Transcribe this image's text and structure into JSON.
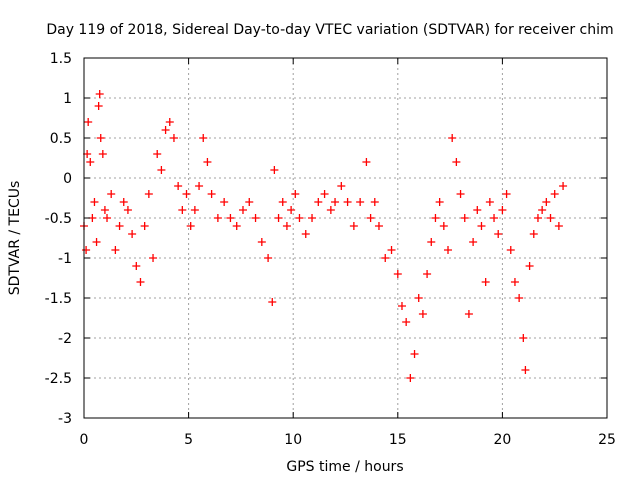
{
  "chart_data": {
    "type": "scatter",
    "title": "Day 119 of 2018, Sidereal Day-to-day VTEC variation (SDTVAR) for receiver chim",
    "xlabel": "GPS time / hours",
    "ylabel": "SDTVAR / TECUs",
    "xlim": [
      0,
      25
    ],
    "ylim": [
      -3,
      1.5
    ],
    "x_ticks": [
      0,
      5,
      10,
      15,
      20,
      25
    ],
    "x_tick_labels": [
      "0",
      "5",
      "10",
      "15",
      "20",
      "25"
    ],
    "y_ticks": [
      1.5,
      1,
      0.5,
      0,
      -0.5,
      -1,
      -1.5,
      -2,
      -2.5,
      -3
    ],
    "y_tick_labels": [
      "1.5",
      "1",
      "0.5",
      "0",
      "-0.5",
      "-1",
      "-1.5",
      "-2",
      "-2.5",
      "-3"
    ],
    "grid": true,
    "marker": "+",
    "series": [
      {
        "name": "receiver chim",
        "color": "#ff0000",
        "points": [
          [
            0.0,
            -0.6
          ],
          [
            0.1,
            -0.9
          ],
          [
            0.15,
            0.3
          ],
          [
            0.2,
            0.7
          ],
          [
            0.3,
            0.2
          ],
          [
            0.4,
            -0.5
          ],
          [
            0.5,
            -0.3
          ],
          [
            0.6,
            -0.8
          ],
          [
            0.7,
            0.9
          ],
          [
            0.75,
            1.05
          ],
          [
            0.8,
            0.5
          ],
          [
            0.9,
            0.3
          ],
          [
            1.0,
            -0.4
          ],
          [
            1.1,
            -0.5
          ],
          [
            1.3,
            -0.2
          ],
          [
            1.5,
            -0.9
          ],
          [
            1.7,
            -0.6
          ],
          [
            1.9,
            -0.3
          ],
          [
            2.1,
            -0.4
          ],
          [
            2.3,
            -0.7
          ],
          [
            2.5,
            -1.1
          ],
          [
            2.7,
            -1.3
          ],
          [
            2.9,
            -0.6
          ],
          [
            3.1,
            -0.2
          ],
          [
            3.3,
            -1.0
          ],
          [
            3.5,
            0.3
          ],
          [
            3.7,
            0.1
          ],
          [
            3.9,
            0.6
          ],
          [
            4.1,
            0.7
          ],
          [
            4.3,
            0.5
          ],
          [
            4.5,
            -0.1
          ],
          [
            4.7,
            -0.4
          ],
          [
            4.9,
            -0.2
          ],
          [
            5.1,
            -0.6
          ],
          [
            5.3,
            -0.4
          ],
          [
            5.5,
            -0.1
          ],
          [
            5.7,
            0.5
          ],
          [
            5.9,
            0.2
          ],
          [
            6.1,
            -0.2
          ],
          [
            6.4,
            -0.5
          ],
          [
            6.7,
            -0.3
          ],
          [
            7.0,
            -0.5
          ],
          [
            7.3,
            -0.6
          ],
          [
            7.6,
            -0.4
          ],
          [
            7.9,
            -0.3
          ],
          [
            8.2,
            -0.5
          ],
          [
            8.5,
            -0.8
          ],
          [
            8.8,
            -1.0
          ],
          [
            9.0,
            -1.55
          ],
          [
            9.1,
            0.1
          ],
          [
            9.3,
            -0.5
          ],
          [
            9.5,
            -0.3
          ],
          [
            9.7,
            -0.6
          ],
          [
            9.9,
            -0.4
          ],
          [
            10.1,
            -0.2
          ],
          [
            10.3,
            -0.5
          ],
          [
            10.6,
            -0.7
          ],
          [
            10.9,
            -0.5
          ],
          [
            11.2,
            -0.3
          ],
          [
            11.5,
            -0.2
          ],
          [
            11.8,
            -0.4
          ],
          [
            12.0,
            -0.3
          ],
          [
            12.3,
            -0.1
          ],
          [
            12.6,
            -0.3
          ],
          [
            12.9,
            -0.6
          ],
          [
            13.2,
            -0.3
          ],
          [
            13.5,
            0.2
          ],
          [
            13.7,
            -0.5
          ],
          [
            13.9,
            -0.3
          ],
          [
            14.1,
            -0.6
          ],
          [
            14.4,
            -1.0
          ],
          [
            14.7,
            -0.9
          ],
          [
            15.0,
            -1.2
          ],
          [
            15.2,
            -1.6
          ],
          [
            15.4,
            -1.8
          ],
          [
            15.6,
            -2.5
          ],
          [
            15.8,
            -2.2
          ],
          [
            16.0,
            -1.5
          ],
          [
            16.2,
            -1.7
          ],
          [
            16.4,
            -1.2
          ],
          [
            16.6,
            -0.8
          ],
          [
            16.8,
            -0.5
          ],
          [
            17.0,
            -0.3
          ],
          [
            17.2,
            -0.6
          ],
          [
            17.4,
            -0.9
          ],
          [
            17.6,
            0.5
          ],
          [
            17.8,
            0.2
          ],
          [
            18.0,
            -0.2
          ],
          [
            18.2,
            -0.5
          ],
          [
            18.4,
            -1.7
          ],
          [
            18.6,
            -0.8
          ],
          [
            18.8,
            -0.4
          ],
          [
            19.0,
            -0.6
          ],
          [
            19.2,
            -1.3
          ],
          [
            19.4,
            -0.3
          ],
          [
            19.6,
            -0.5
          ],
          [
            19.8,
            -0.7
          ],
          [
            20.0,
            -0.4
          ],
          [
            20.2,
            -0.2
          ],
          [
            20.4,
            -0.9
          ],
          [
            20.6,
            -1.3
          ],
          [
            20.8,
            -1.5
          ],
          [
            21.0,
            -2.0
          ],
          [
            21.1,
            -2.4
          ],
          [
            21.3,
            -1.1
          ],
          [
            21.5,
            -0.7
          ],
          [
            21.7,
            -0.5
          ],
          [
            21.9,
            -0.4
          ],
          [
            22.1,
            -0.3
          ],
          [
            22.3,
            -0.5
          ],
          [
            22.5,
            -0.2
          ],
          [
            22.7,
            -0.6
          ],
          [
            22.9,
            -0.1
          ]
        ]
      }
    ]
  }
}
